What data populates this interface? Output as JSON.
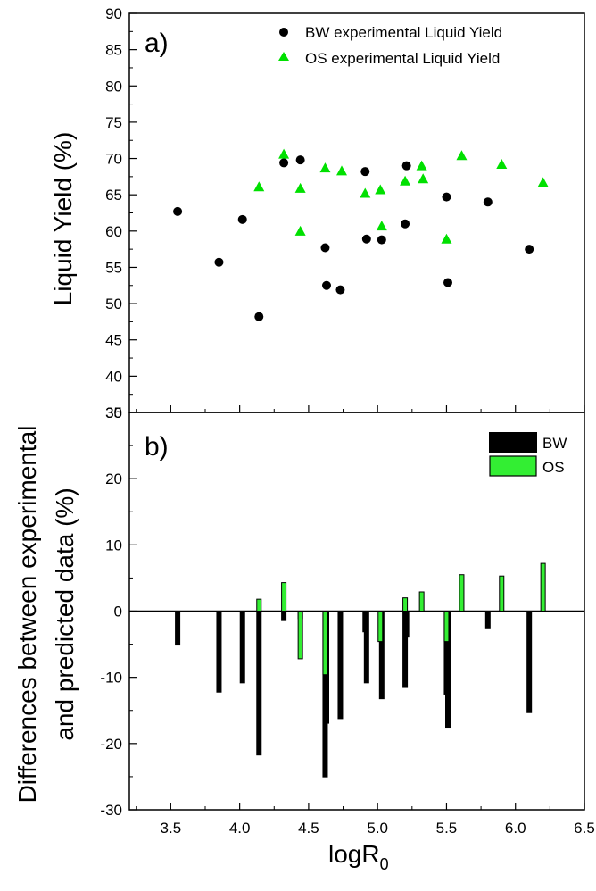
{
  "chart_data": [
    {
      "panel_label": "a)",
      "type": "scatter",
      "ylabel": "Liquid Yield (%)",
      "ylim": [
        35,
        90
      ],
      "yticks": [
        35,
        40,
        45,
        50,
        55,
        60,
        65,
        70,
        75,
        80,
        85,
        90
      ],
      "legend_position": "top-right",
      "series": [
        {
          "name": "BW experimental Liquid Yield",
          "marker": "circle",
          "color": "#000000",
          "points": [
            [
              3.55,
              62.7
            ],
            [
              3.85,
              55.7
            ],
            [
              4.02,
              61.6
            ],
            [
              4.14,
              48.2
            ],
            [
              4.32,
              69.4
            ],
            [
              4.44,
              69.8
            ],
            [
              4.62,
              57.7
            ],
            [
              4.63,
              52.5
            ],
            [
              4.73,
              51.9
            ],
            [
              4.91,
              68.2
            ],
            [
              4.92,
              58.9
            ],
            [
              5.03,
              58.8
            ],
            [
              5.2,
              61.0
            ],
            [
              5.21,
              69.0
            ],
            [
              5.5,
              64.7
            ],
            [
              5.51,
              52.9
            ],
            [
              5.8,
              64.0
            ],
            [
              6.1,
              57.5
            ]
          ]
        },
        {
          "name": "OS experimental Liquid Yield",
          "marker": "triangle",
          "color": "#00e000",
          "points": [
            [
              4.14,
              66.1
            ],
            [
              4.32,
              70.6
            ],
            [
              4.44,
              60.0
            ],
            [
              4.44,
              65.9
            ],
            [
              4.62,
              68.7
            ],
            [
              4.74,
              68.3
            ],
            [
              4.91,
              65.2
            ],
            [
              5.02,
              65.7
            ],
            [
              5.03,
              60.7
            ],
            [
              5.2,
              66.9
            ],
            [
              5.32,
              69.0
            ],
            [
              5.33,
              67.2
            ],
            [
              5.5,
              58.9
            ],
            [
              5.61,
              70.4
            ],
            [
              5.9,
              69.2
            ],
            [
              6.2,
              66.7
            ]
          ]
        }
      ]
    },
    {
      "panel_label": "b)",
      "type": "bar",
      "xlabel": "logR",
      "xlabel_subscript": "0",
      "ylabel_lines": [
        "Differences between experimental",
        "and predicted data (%)"
      ],
      "xlim": [
        3.2,
        6.5
      ],
      "xticks": [
        "3.5",
        "4.0",
        "4.5",
        "5.0",
        "5.5",
        "6.0",
        "6.5"
      ],
      "ylim": [
        -30,
        30
      ],
      "yticks": [
        -30,
        -20,
        -10,
        0,
        10,
        20
      ],
      "legend_position": "top-right",
      "series": [
        {
          "name": "BW",
          "color": "#000000",
          "points": [
            [
              3.55,
              -5.2
            ],
            [
              3.85,
              -12.3
            ],
            [
              4.02,
              -10.9
            ],
            [
              4.14,
              -21.8
            ],
            [
              4.32,
              -1.5
            ],
            [
              4.44,
              -1.2
            ],
            [
              4.62,
              -25.1
            ],
            [
              4.63,
              -17.0
            ],
            [
              4.73,
              -16.3
            ],
            [
              4.91,
              -3.2
            ],
            [
              4.92,
              -10.9
            ],
            [
              5.03,
              -13.3
            ],
            [
              5.2,
              -11.6
            ],
            [
              5.21,
              -4.0
            ],
            [
              5.5,
              -12.6
            ],
            [
              5.51,
              -17.6
            ],
            [
              5.8,
              -2.6
            ],
            [
              6.1,
              -15.4
            ]
          ]
        },
        {
          "name": "OS",
          "color": "#33ee33",
          "points": [
            [
              4.14,
              1.8
            ],
            [
              4.32,
              4.3
            ],
            [
              4.44,
              -7.2
            ],
            [
              4.62,
              -9.6
            ],
            [
              5.02,
              -4.6
            ],
            [
              5.2,
              2.0
            ],
            [
              5.32,
              2.9
            ],
            [
              5.5,
              -4.6
            ],
            [
              5.61,
              5.5
            ],
            [
              5.9,
              5.3
            ],
            [
              6.2,
              7.2
            ]
          ]
        }
      ]
    }
  ]
}
